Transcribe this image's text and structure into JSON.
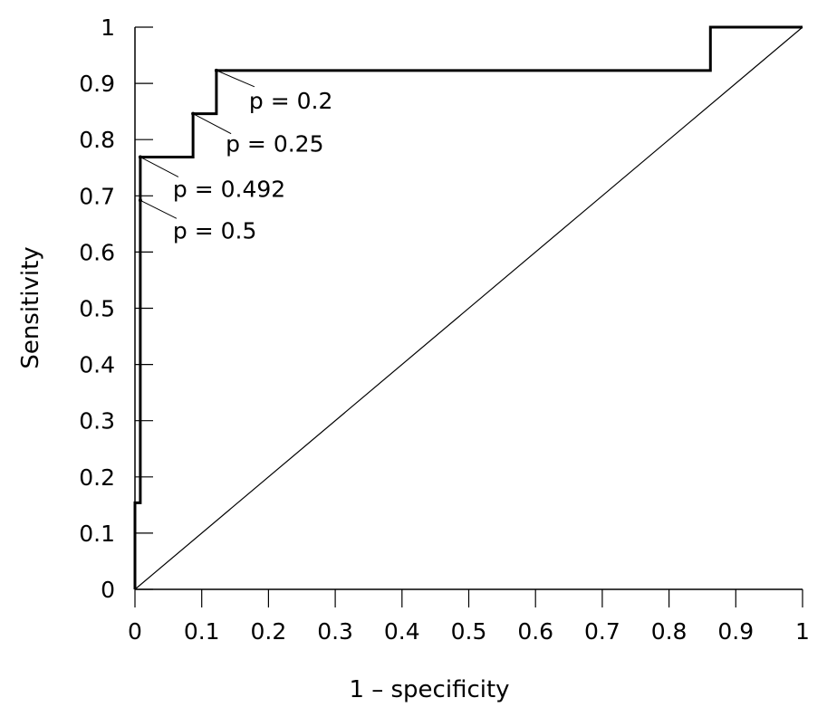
{
  "chart_data": {
    "type": "line",
    "xlabel": "1 – specificity",
    "ylabel": "Sensitivity",
    "xlim": [
      0,
      1
    ],
    "ylim": [
      0,
      1
    ],
    "grid": false,
    "x_ticks": [
      "0",
      "0.1",
      "0.2",
      "0.3",
      "0.4",
      "0.5",
      "0.6",
      "0.7",
      "0.8",
      "0.9",
      "1"
    ],
    "y_ticks": [
      "0",
      "0.1",
      "0.2",
      "0.3",
      "0.4",
      "0.5",
      "0.6",
      "0.7",
      "0.8",
      "0.9",
      "1"
    ],
    "series": [
      {
        "style": "step",
        "x": [
          0,
          0,
          0.008,
          0.008,
          0.008,
          0.087,
          0.087,
          0.122,
          0.122,
          0.862,
          0.862,
          1
        ],
        "y": [
          0,
          0.154,
          0.154,
          0.692,
          0.769,
          0.769,
          0.846,
          0.846,
          0.923,
          0.923,
          1,
          1
        ]
      },
      {
        "style": "reference",
        "x": [
          0,
          1
        ],
        "y": [
          0,
          1
        ]
      }
    ],
    "annotations": [
      {
        "text": "p = 0.2",
        "x": 0.122,
        "y": 0.923
      },
      {
        "text": "p = 0.25",
        "x": 0.087,
        "y": 0.846
      },
      {
        "text": "p = 0.492",
        "x": 0.008,
        "y": 0.769
      },
      {
        "text": "p = 0.5",
        "x": 0.008,
        "y": 0.692
      }
    ]
  }
}
